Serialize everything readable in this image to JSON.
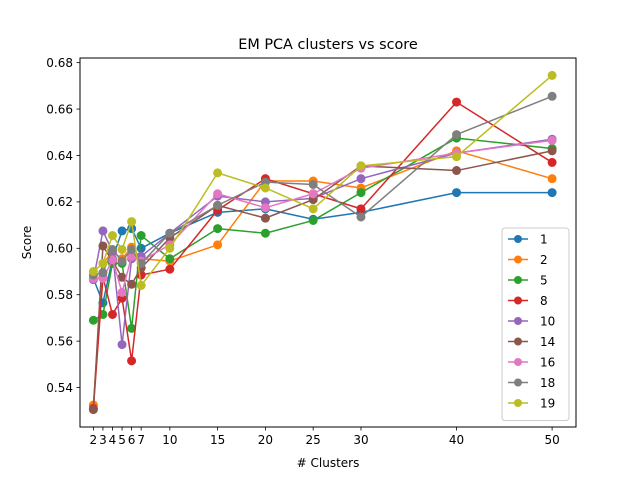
{
  "chart_data": {
    "type": "line",
    "title": "EM PCA clusters vs score",
    "xlabel": "# Clusters",
    "ylabel": "Score",
    "x": [
      2,
      3,
      4,
      5,
      6,
      7,
      10,
      15,
      20,
      25,
      30,
      40,
      50
    ],
    "x_ticks": [
      2,
      3,
      4,
      5,
      6,
      7,
      10,
      15,
      20,
      25,
      30,
      40,
      50
    ],
    "xlim": [
      0.6,
      52.5
    ],
    "ylim": [
      0.523,
      0.682
    ],
    "y_ticks": [
      0.54,
      0.56,
      0.58,
      0.6,
      0.62,
      0.64,
      0.66,
      0.68
    ],
    "y_tick_labels": [
      "0.54",
      "0.56",
      "0.58",
      "0.60",
      "0.62",
      "0.64",
      "0.66",
      "0.68"
    ],
    "grid": false,
    "legend_position": "lower right",
    "markers": "circle",
    "series": [
      {
        "name": "1",
        "color": "#1f77b4",
        "values": [
          0.587,
          0.5765,
          0.5955,
          0.6075,
          0.6085,
          0.6,
          0.6065,
          0.6155,
          0.617,
          0.6125,
          0.6155,
          0.624,
          0.624
        ]
      },
      {
        "name": "2",
        "color": "#ff7f0e",
        "values": [
          0.5325,
          0.5935,
          0.5985,
          0.5955,
          0.6005,
          0.5955,
          0.5945,
          0.6015,
          0.629,
          0.629,
          0.626,
          0.642,
          0.63
        ]
      },
      {
        "name": "5",
        "color": "#2ca02c",
        "values": [
          0.569,
          0.5715,
          0.5935,
          0.5935,
          0.5655,
          0.6055,
          0.5955,
          0.6085,
          0.6065,
          0.612,
          0.624,
          0.6475,
          0.643
        ]
      },
      {
        "name": "8",
        "color": "#d62728",
        "values": [
          0.531,
          0.5875,
          0.5715,
          0.5785,
          0.5515,
          0.5885,
          0.591,
          0.6165,
          0.63,
          0.6235,
          0.617,
          0.663,
          0.637
        ]
      },
      {
        "name": "10",
        "color": "#9467bd",
        "values": [
          0.5865,
          0.6075,
          0.5985,
          0.5585,
          0.5955,
          0.5965,
          0.6065,
          0.6225,
          0.62,
          0.6215,
          0.63,
          0.641,
          0.647
        ]
      },
      {
        "name": "14",
        "color": "#8c564b",
        "values": [
          0.5305,
          0.601,
          0.5945,
          0.5875,
          0.5845,
          0.5915,
          0.6045,
          0.6185,
          0.613,
          0.621,
          0.6355,
          0.6335,
          0.642
        ]
      },
      {
        "name": "16",
        "color": "#e377c2",
        "values": [
          0.587,
          0.587,
          0.595,
          0.581,
          0.5965,
          0.5945,
          0.6015,
          0.6235,
          0.6175,
          0.6235,
          0.6345,
          0.641,
          0.6465
        ]
      },
      {
        "name": "18",
        "color": "#7f7f7f",
        "values": [
          0.5885,
          0.5895,
          0.5995,
          0.5945,
          0.5995,
          0.5935,
          0.6065,
          0.6185,
          0.6285,
          0.6275,
          0.6135,
          0.649,
          0.6655
        ]
      },
      {
        "name": "19",
        "color": "#bcbd22",
        "values": [
          0.59,
          0.5935,
          0.6055,
          0.5995,
          0.6115,
          0.584,
          0.6,
          0.6325,
          0.626,
          0.617,
          0.6355,
          0.6395,
          0.6745
        ]
      }
    ]
  }
}
